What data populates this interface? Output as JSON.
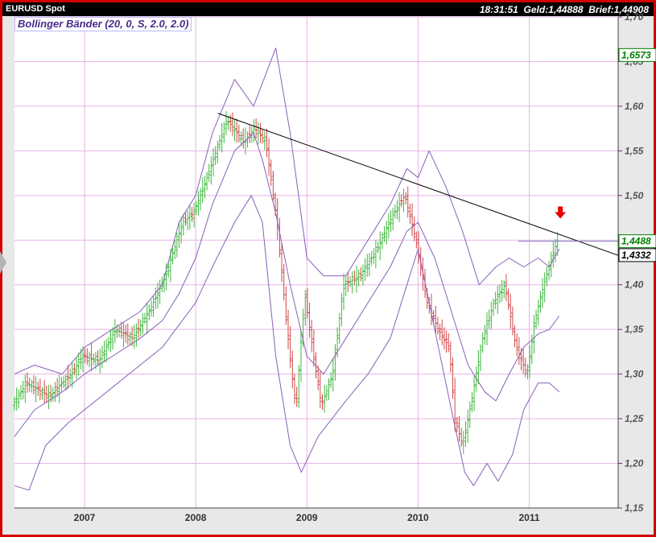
{
  "header": {
    "symbol": "EURUSD Spot",
    "time": "18:31:51",
    "bid_label": "Geld:",
    "bid": "1,44888",
    "ask_label": "Brief:",
    "ask": "1,44908"
  },
  "legend": {
    "indicator": "Bollinger Bänder (20, 0, S, 2.0, 2.0)"
  },
  "colors": {
    "up_bar": "#3fb83f",
    "down_bar": "#d04848",
    "band": "#8a5fb8",
    "trendline": "#000000",
    "grid": "#e6b3e6",
    "arrow": "#e60000",
    "frame": "#d40000"
  },
  "chart_data": {
    "type": "bar",
    "subtype": "ohlc-weekly",
    "instrument": "EURUSD Spot",
    "indicator": "Bollinger Bänder (20, 0, S, 2.0, 2.0)",
    "ylim": [
      1.15,
      1.7
    ],
    "yticks": [
      "1,15",
      "1,20",
      "1,25",
      "1,30",
      "1,35",
      "1,40",
      "1,45",
      "1,50",
      "1,55",
      "1,60",
      "1,65",
      "1,70"
    ],
    "ytick_values": [
      1.15,
      1.2,
      1.25,
      1.3,
      1.35,
      1.4,
      1.45,
      1.5,
      1.55,
      1.6,
      1.65,
      1.7
    ],
    "xlim": [
      2006.37,
      2011.8
    ],
    "xticks": [
      "2007",
      "2008",
      "2009",
      "2010",
      "2011"
    ],
    "xtick_values": [
      2007.0,
      2008.0,
      2009.0,
      2010.0,
      2011.0
    ],
    "price_path": [
      [
        2006.37,
        1.265
      ],
      [
        2006.5,
        1.29
      ],
      [
        2006.7,
        1.275
      ],
      [
        2006.9,
        1.3
      ],
      [
        2007.0,
        1.32
      ],
      [
        2007.15,
        1.315
      ],
      [
        2007.3,
        1.35
      ],
      [
        2007.45,
        1.34
      ],
      [
        2007.6,
        1.37
      ],
      [
        2007.75,
        1.41
      ],
      [
        2007.9,
        1.47
      ],
      [
        2008.0,
        1.48
      ],
      [
        2008.15,
        1.53
      ],
      [
        2008.3,
        1.585
      ],
      [
        2008.45,
        1.56
      ],
      [
        2008.55,
        1.575
      ],
      [
        2008.65,
        1.56
      ],
      [
        2008.75,
        1.47
      ],
      [
        2008.85,
        1.34
      ],
      [
        2008.92,
        1.26
      ],
      [
        2009.0,
        1.39
      ],
      [
        2009.08,
        1.32
      ],
      [
        2009.15,
        1.265
      ],
      [
        2009.25,
        1.3
      ],
      [
        2009.35,
        1.4
      ],
      [
        2009.5,
        1.41
      ],
      [
        2009.65,
        1.44
      ],
      [
        2009.8,
        1.48
      ],
      [
        2009.9,
        1.5
      ],
      [
        2010.0,
        1.45
      ],
      [
        2010.1,
        1.38
      ],
      [
        2010.2,
        1.35
      ],
      [
        2010.3,
        1.33
      ],
      [
        2010.35,
        1.25
      ],
      [
        2010.42,
        1.22
      ],
      [
        2010.5,
        1.27
      ],
      [
        2010.6,
        1.34
      ],
      [
        2010.7,
        1.38
      ],
      [
        2010.8,
        1.4
      ],
      [
        2010.9,
        1.33
      ],
      [
        2011.0,
        1.3
      ],
      [
        2011.07,
        1.36
      ],
      [
        2011.15,
        1.4
      ],
      [
        2011.22,
        1.43
      ],
      [
        2011.27,
        1.449
      ]
    ],
    "bollinger_upper": [
      [
        2006.37,
        1.3
      ],
      [
        2006.55,
        1.31
      ],
      [
        2006.8,
        1.3
      ],
      [
        2007.0,
        1.33
      ],
      [
        2007.25,
        1.35
      ],
      [
        2007.5,
        1.37
      ],
      [
        2007.7,
        1.4
      ],
      [
        2007.85,
        1.47
      ],
      [
        2008.0,
        1.5
      ],
      [
        2008.15,
        1.57
      ],
      [
        2008.35,
        1.63
      ],
      [
        2008.52,
        1.6
      ],
      [
        2008.72,
        1.665
      ],
      [
        2008.85,
        1.57
      ],
      [
        2009.0,
        1.43
      ],
      [
        2009.15,
        1.41
      ],
      [
        2009.35,
        1.41
      ],
      [
        2009.55,
        1.45
      ],
      [
        2009.75,
        1.49
      ],
      [
        2009.9,
        1.53
      ],
      [
        2010.0,
        1.52
      ],
      [
        2010.1,
        1.55
      ],
      [
        2010.25,
        1.51
      ],
      [
        2010.4,
        1.46
      ],
      [
        2010.55,
        1.4
      ],
      [
        2010.7,
        1.42
      ],
      [
        2010.82,
        1.43
      ],
      [
        2010.95,
        1.42
      ],
      [
        2011.08,
        1.43
      ],
      [
        2011.18,
        1.42
      ],
      [
        2011.27,
        1.44
      ]
    ],
    "bollinger_middle": [
      [
        2006.37,
        1.23
      ],
      [
        2006.55,
        1.26
      ],
      [
        2006.8,
        1.28
      ],
      [
        2007.0,
        1.3
      ],
      [
        2007.25,
        1.32
      ],
      [
        2007.5,
        1.34
      ],
      [
        2007.7,
        1.36
      ],
      [
        2007.85,
        1.39
      ],
      [
        2008.0,
        1.43
      ],
      [
        2008.15,
        1.49
      ],
      [
        2008.35,
        1.55
      ],
      [
        2008.52,
        1.57
      ],
      [
        2008.6,
        1.54
      ],
      [
        2008.72,
        1.48
      ],
      [
        2008.85,
        1.4
      ],
      [
        2009.0,
        1.32
      ],
      [
        2009.15,
        1.3
      ],
      [
        2009.35,
        1.34
      ],
      [
        2009.55,
        1.38
      ],
      [
        2009.75,
        1.42
      ],
      [
        2009.9,
        1.46
      ],
      [
        2010.0,
        1.47
      ],
      [
        2010.15,
        1.43
      ],
      [
        2010.3,
        1.37
      ],
      [
        2010.45,
        1.31
      ],
      [
        2010.6,
        1.28
      ],
      [
        2010.7,
        1.27
      ],
      [
        2010.82,
        1.3
      ],
      [
        2010.95,
        1.33
      ],
      [
        2011.08,
        1.345
      ],
      [
        2011.18,
        1.35
      ],
      [
        2011.27,
        1.365
      ]
    ],
    "bollinger_lower": [
      [
        2006.37,
        1.175
      ],
      [
        2006.5,
        1.17
      ],
      [
        2006.65,
        1.22
      ],
      [
        2006.85,
        1.245
      ],
      [
        2007.0,
        1.26
      ],
      [
        2007.25,
        1.285
      ],
      [
        2007.5,
        1.31
      ],
      [
        2007.7,
        1.33
      ],
      [
        2007.85,
        1.355
      ],
      [
        2008.0,
        1.38
      ],
      [
        2008.15,
        1.42
      ],
      [
        2008.35,
        1.47
      ],
      [
        2008.5,
        1.5
      ],
      [
        2008.6,
        1.47
      ],
      [
        2008.72,
        1.32
      ],
      [
        2008.85,
        1.22
      ],
      [
        2008.95,
        1.19
      ],
      [
        2009.1,
        1.23
      ],
      [
        2009.35,
        1.27
      ],
      [
        2009.55,
        1.3
      ],
      [
        2009.75,
        1.34
      ],
      [
        2009.9,
        1.4
      ],
      [
        2010.0,
        1.44
      ],
      [
        2010.15,
        1.35
      ],
      [
        2010.3,
        1.26
      ],
      [
        2010.42,
        1.19
      ],
      [
        2010.5,
        1.175
      ],
      [
        2010.62,
        1.2
      ],
      [
        2010.72,
        1.18
      ],
      [
        2010.85,
        1.21
      ],
      [
        2010.95,
        1.26
      ],
      [
        2011.08,
        1.29
      ],
      [
        2011.18,
        1.29
      ],
      [
        2011.27,
        1.28
      ]
    ],
    "trendline": [
      [
        2008.2,
        1.592
      ],
      [
        2011.8,
        1.433
      ]
    ],
    "reference_line": {
      "from": 2010.9,
      "to": 2011.8,
      "value": 1.4488
    },
    "price_labels": [
      {
        "text": "1,6573",
        "value": 1.6573,
        "color": "#008000"
      },
      {
        "text": "1,4488",
        "value": 1.4488,
        "color": "#008000"
      },
      {
        "text": "1,4332",
        "value": 1.4332,
        "color": "#000000"
      }
    ],
    "marker": {
      "type": "down-arrow",
      "x": 2011.28,
      "value": 1.475
    },
    "grid": true
  }
}
